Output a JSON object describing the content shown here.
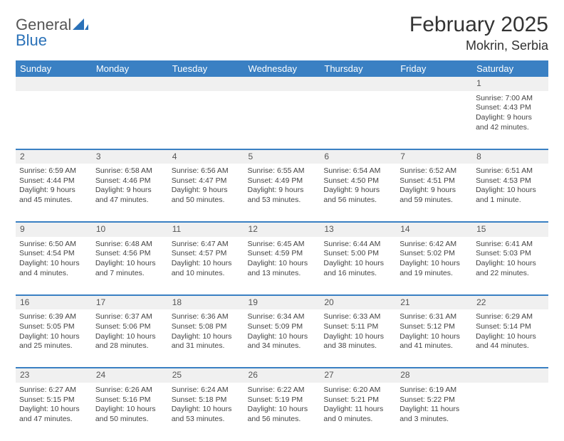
{
  "brand": {
    "part1": "General",
    "part2": "Blue"
  },
  "title": "February 2025",
  "location": "Mokrin, Serbia",
  "columns": [
    "Sunday",
    "Monday",
    "Tuesday",
    "Wednesday",
    "Thursday",
    "Friday",
    "Saturday"
  ],
  "colors": {
    "header_bg": "#3a80c3",
    "header_text": "#ffffff",
    "daynum_bg": "#f0f0f0",
    "brand_gray": "#555555",
    "brand_blue": "#2a71b8",
    "divider": "#3a80c3"
  },
  "typography": {
    "title_fontsize": 30,
    "location_fontsize": 18,
    "header_fontsize": 13,
    "daynum_fontsize": 12,
    "cell_fontsize": 10.5
  },
  "weeks": [
    [
      null,
      null,
      null,
      null,
      null,
      null,
      {
        "n": "1",
        "sunrise": "Sunrise: 7:00 AM",
        "sunset": "Sunset: 4:43 PM",
        "daylight": "Daylight: 9 hours and 42 minutes."
      }
    ],
    [
      {
        "n": "2",
        "sunrise": "Sunrise: 6:59 AM",
        "sunset": "Sunset: 4:44 PM",
        "daylight": "Daylight: 9 hours and 45 minutes."
      },
      {
        "n": "3",
        "sunrise": "Sunrise: 6:58 AM",
        "sunset": "Sunset: 4:46 PM",
        "daylight": "Daylight: 9 hours and 47 minutes."
      },
      {
        "n": "4",
        "sunrise": "Sunrise: 6:56 AM",
        "sunset": "Sunset: 4:47 PM",
        "daylight": "Daylight: 9 hours and 50 minutes."
      },
      {
        "n": "5",
        "sunrise": "Sunrise: 6:55 AM",
        "sunset": "Sunset: 4:49 PM",
        "daylight": "Daylight: 9 hours and 53 minutes."
      },
      {
        "n": "6",
        "sunrise": "Sunrise: 6:54 AM",
        "sunset": "Sunset: 4:50 PM",
        "daylight": "Daylight: 9 hours and 56 minutes."
      },
      {
        "n": "7",
        "sunrise": "Sunrise: 6:52 AM",
        "sunset": "Sunset: 4:51 PM",
        "daylight": "Daylight: 9 hours and 59 minutes."
      },
      {
        "n": "8",
        "sunrise": "Sunrise: 6:51 AM",
        "sunset": "Sunset: 4:53 PM",
        "daylight": "Daylight: 10 hours and 1 minute."
      }
    ],
    [
      {
        "n": "9",
        "sunrise": "Sunrise: 6:50 AM",
        "sunset": "Sunset: 4:54 PM",
        "daylight": "Daylight: 10 hours and 4 minutes."
      },
      {
        "n": "10",
        "sunrise": "Sunrise: 6:48 AM",
        "sunset": "Sunset: 4:56 PM",
        "daylight": "Daylight: 10 hours and 7 minutes."
      },
      {
        "n": "11",
        "sunrise": "Sunrise: 6:47 AM",
        "sunset": "Sunset: 4:57 PM",
        "daylight": "Daylight: 10 hours and 10 minutes."
      },
      {
        "n": "12",
        "sunrise": "Sunrise: 6:45 AM",
        "sunset": "Sunset: 4:59 PM",
        "daylight": "Daylight: 10 hours and 13 minutes."
      },
      {
        "n": "13",
        "sunrise": "Sunrise: 6:44 AM",
        "sunset": "Sunset: 5:00 PM",
        "daylight": "Daylight: 10 hours and 16 minutes."
      },
      {
        "n": "14",
        "sunrise": "Sunrise: 6:42 AM",
        "sunset": "Sunset: 5:02 PM",
        "daylight": "Daylight: 10 hours and 19 minutes."
      },
      {
        "n": "15",
        "sunrise": "Sunrise: 6:41 AM",
        "sunset": "Sunset: 5:03 PM",
        "daylight": "Daylight: 10 hours and 22 minutes."
      }
    ],
    [
      {
        "n": "16",
        "sunrise": "Sunrise: 6:39 AM",
        "sunset": "Sunset: 5:05 PM",
        "daylight": "Daylight: 10 hours and 25 minutes."
      },
      {
        "n": "17",
        "sunrise": "Sunrise: 6:37 AM",
        "sunset": "Sunset: 5:06 PM",
        "daylight": "Daylight: 10 hours and 28 minutes."
      },
      {
        "n": "18",
        "sunrise": "Sunrise: 6:36 AM",
        "sunset": "Sunset: 5:08 PM",
        "daylight": "Daylight: 10 hours and 31 minutes."
      },
      {
        "n": "19",
        "sunrise": "Sunrise: 6:34 AM",
        "sunset": "Sunset: 5:09 PM",
        "daylight": "Daylight: 10 hours and 34 minutes."
      },
      {
        "n": "20",
        "sunrise": "Sunrise: 6:33 AM",
        "sunset": "Sunset: 5:11 PM",
        "daylight": "Daylight: 10 hours and 38 minutes."
      },
      {
        "n": "21",
        "sunrise": "Sunrise: 6:31 AM",
        "sunset": "Sunset: 5:12 PM",
        "daylight": "Daylight: 10 hours and 41 minutes."
      },
      {
        "n": "22",
        "sunrise": "Sunrise: 6:29 AM",
        "sunset": "Sunset: 5:14 PM",
        "daylight": "Daylight: 10 hours and 44 minutes."
      }
    ],
    [
      {
        "n": "23",
        "sunrise": "Sunrise: 6:27 AM",
        "sunset": "Sunset: 5:15 PM",
        "daylight": "Daylight: 10 hours and 47 minutes."
      },
      {
        "n": "24",
        "sunrise": "Sunrise: 6:26 AM",
        "sunset": "Sunset: 5:16 PM",
        "daylight": "Daylight: 10 hours and 50 minutes."
      },
      {
        "n": "25",
        "sunrise": "Sunrise: 6:24 AM",
        "sunset": "Sunset: 5:18 PM",
        "daylight": "Daylight: 10 hours and 53 minutes."
      },
      {
        "n": "26",
        "sunrise": "Sunrise: 6:22 AM",
        "sunset": "Sunset: 5:19 PM",
        "daylight": "Daylight: 10 hours and 56 minutes."
      },
      {
        "n": "27",
        "sunrise": "Sunrise: 6:20 AM",
        "sunset": "Sunset: 5:21 PM",
        "daylight": "Daylight: 11 hours and 0 minutes."
      },
      {
        "n": "28",
        "sunrise": "Sunrise: 6:19 AM",
        "sunset": "Sunset: 5:22 PM",
        "daylight": "Daylight: 11 hours and 3 minutes."
      },
      null
    ]
  ]
}
